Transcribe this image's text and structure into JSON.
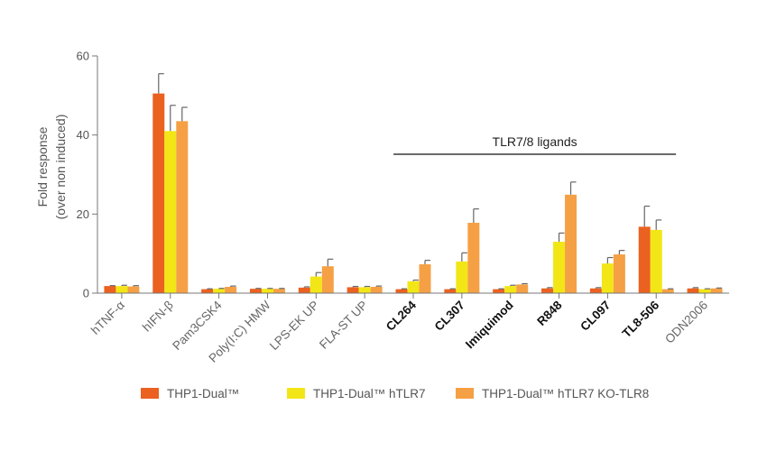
{
  "chart_data": {
    "type": "bar",
    "ylabel_line1": "Fold response",
    "ylabel_line2": "(over non induced)",
    "ylim": [
      0,
      60
    ],
    "yticks": [
      0,
      20,
      40,
      60
    ],
    "categories": [
      "hTNF-α",
      "hIFN-β",
      "Pam3CSK4",
      "Poly(I:C) HMW",
      "LPS-EK UP",
      "FLA-ST UP",
      "CL264",
      "CL307",
      "Imiquimod",
      "R848",
      "CL097",
      "TL8-506",
      "ODN2006"
    ],
    "bold_categories": [
      "CL264",
      "CL307",
      "Imiquimod",
      "R848",
      "CL097",
      "TL8-506"
    ],
    "group_annotation": {
      "label": "TLR7/8 ligands",
      "from": "CL264",
      "to": "TL8-506"
    },
    "series": [
      {
        "name": "THP1-Dual™",
        "color": "#EB6120",
        "values": [
          1.8,
          50.5,
          1.0,
          1.1,
          1.4,
          1.5,
          1.0,
          1.0,
          1.0,
          1.2,
          1.2,
          16.8,
          1.2
        ],
        "errors": [
          0.1,
          5.0,
          0.1,
          0.1,
          0.2,
          0.2,
          0.1,
          0.1,
          0.1,
          0.2,
          0.2,
          5.2,
          0.2
        ]
      },
      {
        "name": "THP1-Dual™ hTLR7",
        "color": "#F2E617",
        "values": [
          1.8,
          41.0,
          1.1,
          1.1,
          4.2,
          1.5,
          3.0,
          8.0,
          1.8,
          13.0,
          7.5,
          16.0,
          1.0
        ],
        "errors": [
          0.2,
          6.5,
          0.1,
          0.1,
          1.0,
          0.2,
          0.3,
          2.2,
          0.2,
          2.2,
          1.5,
          2.5,
          0.1
        ]
      },
      {
        "name": "THP1-Dual™ hTLR7 KO-TLR8",
        "color": "#F5A045",
        "values": [
          1.7,
          43.5,
          1.6,
          1.1,
          6.8,
          1.6,
          7.3,
          17.8,
          2.2,
          24.9,
          9.8,
          1.0,
          1.2
        ],
        "errors": [
          0.2,
          3.5,
          0.2,
          0.1,
          1.8,
          0.2,
          1.0,
          3.5,
          0.2,
          3.2,
          1.0,
          0.1,
          0.1
        ]
      }
    ],
    "legend_position": "bottom",
    "grid": false
  }
}
